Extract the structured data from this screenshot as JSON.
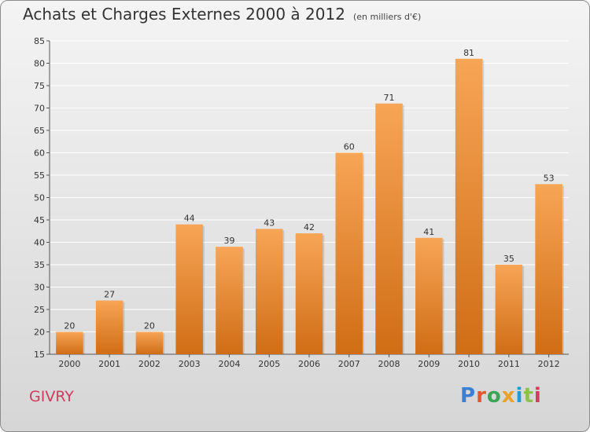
{
  "header": {
    "title": "Achats et Charges Externes 2000 à 2012",
    "subtitle": "(en milliers d'€)"
  },
  "footer": {
    "commune": "GIVRY",
    "logo": {
      "p1": "P",
      "p2": "r",
      "p3": "o",
      "p4": "x",
      "p5": "i",
      "p6": "t",
      "p7": "i"
    }
  },
  "colors": {
    "bar_top": "#f7a556",
    "bar_bottom": "#d06d15",
    "grid": "#ffffff",
    "commune": "#d23a5e"
  },
  "chart_data": {
    "type": "bar",
    "title": "Achats et Charges Externes 2000 à 2012",
    "subtitle": "(en milliers d'€)",
    "xlabel": "",
    "ylabel": "",
    "categories": [
      "2000",
      "2001",
      "2002",
      "2003",
      "2004",
      "2005",
      "2006",
      "2007",
      "2008",
      "2009",
      "2010",
      "2011",
      "2012"
    ],
    "values": [
      20,
      27,
      20,
      44,
      39,
      43,
      42,
      60,
      71,
      41,
      81,
      35,
      53
    ],
    "ylim": [
      15,
      85
    ],
    "yticks": [
      15,
      20,
      25,
      30,
      35,
      40,
      45,
      50,
      55,
      60,
      65,
      70,
      75,
      80,
      85
    ],
    "grid": true,
    "data_labels": true
  }
}
